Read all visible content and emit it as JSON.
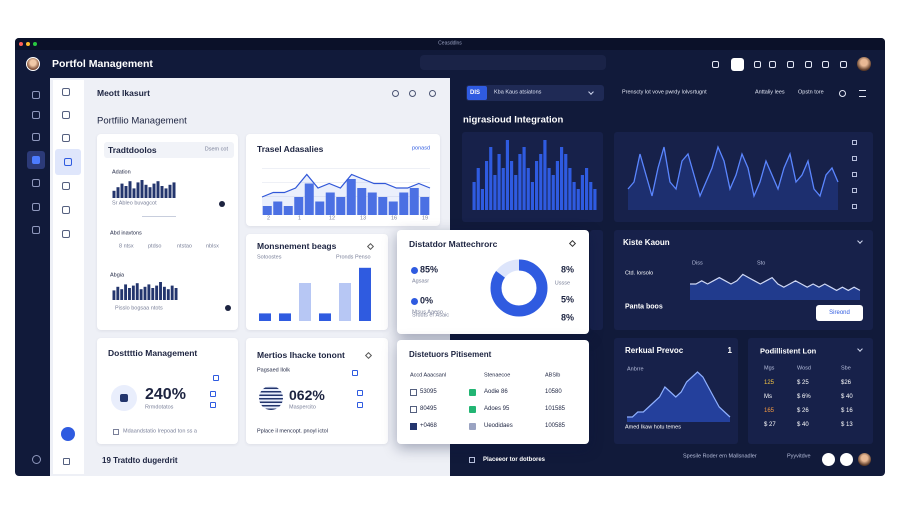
{
  "window": {
    "title": "Ceasddlns"
  },
  "header": {
    "title": "Portfol Management"
  },
  "left": {
    "heading": "Meott Ikasurt",
    "subtitle": "Portfilio Management",
    "footer": "19 Tratdto dugerdrit",
    "tradtdoolos": {
      "title": "Tradtdoolos",
      "tag": "Dsem cot",
      "top_label": "Adation",
      "top_bars": [
        6,
        9,
        12,
        10,
        14,
        8,
        13,
        15,
        11,
        9,
        12,
        14,
        10,
        8,
        11,
        13
      ],
      "top_note": "Sr Ableo buvagcot",
      "mid_label": "Abd inavtons",
      "pills": [
        "8 ntsx",
        "ptdso",
        "ntstao",
        "nblsx"
      ],
      "bottom_label": "Abgia",
      "bottom_bars": [
        8,
        11,
        9,
        13,
        10,
        12,
        14,
        9,
        11,
        13,
        10,
        12,
        15,
        11,
        9,
        12,
        10
      ],
      "bottom_note": "Pisslo bogsaa ntots"
    },
    "trasel": {
      "title": "Trasel Adasalies",
      "tag": "ponasd",
      "bars": [
        2,
        3,
        2,
        4,
        7,
        3,
        5,
        4,
        8,
        6,
        5,
        4,
        3,
        5,
        6,
        4
      ],
      "line": [
        4,
        5,
        5,
        6,
        9,
        6,
        7,
        6,
        9,
        8,
        7,
        7,
        6,
        6,
        7,
        6
      ],
      "x_labels": [
        "2",
        "1",
        "12",
        "13",
        "16",
        "19"
      ]
    },
    "monsnement": {
      "title": "Monsnement beags",
      "legend": [
        "Sotoostes",
        "Pronds Penso"
      ],
      "bars": [
        1,
        1,
        5,
        1,
        5,
        7
      ]
    },
    "distatdor": {
      "title": "Distatdor Mattechrorc",
      "left_values": [
        "85%",
        "0%"
      ],
      "left_labels": [
        "Agsasr",
        "Ntsus Aaeso"
      ],
      "note": "Sruuts er Asaic",
      "donut": 85,
      "right_values": [
        "8%",
        "5%",
        "8%"
      ],
      "right_label": "Ussse"
    },
    "dosttttio": {
      "title": "Dosttttio Management",
      "kpi": "240%",
      "kpi_label": "Rrmdotatos",
      "footer": "Mdaandstatio Irepoad ton ss a"
    },
    "mertios": {
      "title": "Mertios Ihacke tonont",
      "sub": "Pagsaed Ilolk",
      "kpi": "062%",
      "kpi_label": "Maspercito",
      "footer": "Pplace il mencopt. pnoyl ictol"
    },
    "distetuors": {
      "title": "Distetuors Pitisement",
      "columns": [
        "Accd Aaacsanl",
        "Stenaecoe",
        "ABSlb"
      ],
      "rows": [
        [
          "53095",
          "Aodie 86",
          "10580"
        ],
        [
          "80495",
          "Adoes 95",
          "101585"
        ],
        [
          "+0468",
          "Ueodidaes",
          "100585"
        ]
      ]
    }
  },
  "right": {
    "dropdown_chip": "DIS",
    "dropdown": "Kba Kaus atsiatons",
    "toolbar": [
      "Prenscty lot vove pwrdy lolvsrtugnt",
      "Anttaliy lees",
      "Opstn tore"
    ],
    "title": "nigrasioud Integration",
    "bar_chart": [
      4,
      6,
      3,
      7,
      9,
      5,
      8,
      6,
      10,
      7,
      5,
      8,
      9,
      6,
      4,
      7,
      8,
      10,
      6,
      5,
      7,
      9,
      8,
      6,
      4,
      3,
      5,
      6,
      4,
      3
    ],
    "line_chart": [
      3,
      4,
      8,
      5,
      2,
      6,
      9,
      4,
      3,
      7,
      8,
      5,
      2,
      4,
      6,
      9,
      7,
      3,
      5,
      8,
      6,
      2,
      4,
      7,
      5,
      3,
      6,
      8,
      4,
      5,
      7,
      3,
      2,
      5,
      6,
      4
    ],
    "kiste": {
      "title": "Kiste Kaoun",
      "labels": [
        "Diss",
        "Sto"
      ],
      "sub": "Ctd. Iorsolo",
      "line": [
        5,
        5,
        6,
        5,
        6,
        7,
        6,
        5,
        6,
        8,
        7,
        6,
        5,
        6,
        7,
        5,
        4,
        5,
        6,
        5,
        4,
        5,
        4,
        5,
        4,
        3,
        4,
        3,
        4,
        3
      ],
      "footer": "Panta boos",
      "button": "Sireond"
    },
    "rerkual": {
      "title": "Rerkual Prevoc",
      "badge": "1",
      "sub": "Anbrre",
      "curve": [
        1,
        1,
        2,
        2,
        3,
        4,
        5,
        7,
        6,
        5,
        6,
        8,
        9,
        10,
        9,
        7,
        5,
        3,
        2,
        1
      ],
      "footer": "Amed Ikaw hotu temes"
    },
    "podillistent": {
      "title": "Podillistent Lon",
      "columns": [
        "Mgs",
        "Wosd",
        "Sbe"
      ],
      "rows": [
        [
          "125",
          "$ 25",
          "$26"
        ],
        [
          "Ms",
          "$ 6%",
          "$ 40"
        ],
        [
          "165",
          "$ 26",
          "$ 16"
        ],
        [
          "$ 27",
          "$ 40",
          "$ 13"
        ]
      ]
    },
    "footer": {
      "left": "Placeeor tor dotbores",
      "middle": "Spesile Roder ern Mallsnadler",
      "right": "Pyyvitdve"
    }
  }
}
